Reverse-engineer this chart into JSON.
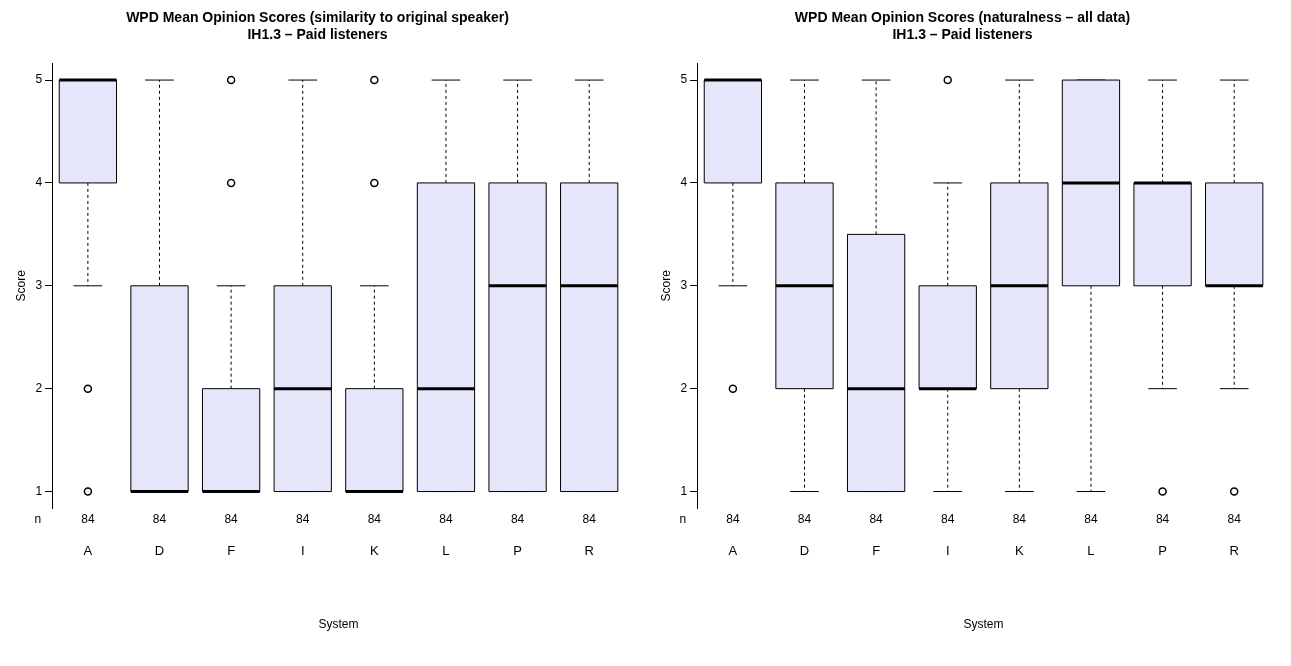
{
  "chart_data": [
    {
      "type": "box",
      "title": "WPD Mean Opinion Scores (similarity to original speaker)",
      "subtitle": "IH1.3 – Paid listeners",
      "xlabel": "System",
      "ylabel": "Score",
      "categories": [
        "A",
        "D",
        "F",
        "I",
        "K",
        "L",
        "P",
        "R"
      ],
      "ylim": [
        0.84,
        5.16
      ],
      "yticks": [
        1,
        2,
        3,
        4,
        5
      ],
      "grid": false,
      "legend": false,
      "series": [
        {
          "color": "#e6e6fa",
          "boxes": [
            {
              "low": 3,
              "q1": 4,
              "median": 5,
              "q3": 5,
              "high": 5,
              "outliers": [
                2,
                1
              ]
            },
            {
              "low": 1,
              "q1": 1,
              "median": 1,
              "q3": 3,
              "high": 5
            },
            {
              "low": 1,
              "q1": 1,
              "median": 1,
              "q3": 2,
              "high": 3,
              "outliers": [
                5,
                4
              ]
            },
            {
              "low": 1,
              "q1": 1,
              "median": 2,
              "q3": 3,
              "high": 5
            },
            {
              "low": 1,
              "q1": 1,
              "median": 1,
              "q3": 2,
              "high": 3,
              "outliers": [
                5,
                4
              ]
            },
            {
              "low": 1,
              "q1": 1,
              "median": 2,
              "q3": 4,
              "high": 5
            },
            {
              "low": 1,
              "q1": 1,
              "median": 3,
              "q3": 4,
              "high": 5
            },
            {
              "low": 1,
              "q1": 1,
              "median": 3,
              "q3": 4,
              "high": 5
            }
          ]
        }
      ],
      "annotations": [
        "n",
        "84",
        "84",
        "84",
        "84",
        "84",
        "84",
        "84",
        "84"
      ]
    },
    {
      "type": "box",
      "title": "WPD Mean Opinion Scores (naturalness – all data)",
      "subtitle": "IH1.3 – Paid listeners",
      "xlabel": "System",
      "ylabel": "Score",
      "categories": [
        "A",
        "D",
        "F",
        "I",
        "K",
        "L",
        "P",
        "R"
      ],
      "ylim": [
        0.84,
        5.16
      ],
      "yticks": [
        1,
        2,
        3,
        4,
        5
      ],
      "grid": false,
      "legend": false,
      "series": [
        {
          "color": "#e6e6fa",
          "boxes": [
            {
              "low": 3,
              "q1": 4,
              "median": 5,
              "q3": 5,
              "high": 5,
              "outliers": [
                2
              ]
            },
            {
              "low": 1,
              "q1": 2,
              "median": 3,
              "q3": 4,
              "high": 5
            },
            {
              "low": 1,
              "q1": 1,
              "median": 2,
              "q3": 3.5,
              "high": 5
            },
            {
              "low": 1,
              "q1": 2,
              "median": 2,
              "q3": 3,
              "high": 4,
              "outliers": [
                5
              ]
            },
            {
              "low": 1,
              "q1": 2,
              "median": 3,
              "q3": 4,
              "high": 5
            },
            {
              "low": 1,
              "q1": 3,
              "median": 4,
              "q3": 5,
              "high": 5
            },
            {
              "low": 2,
              "q1": 3,
              "median": 4,
              "q3": 4,
              "high": 5,
              "outliers": [
                1
              ]
            },
            {
              "low": 2,
              "q1": 3,
              "median": 3,
              "q3": 4,
              "high": 5,
              "outliers": [
                1
              ]
            }
          ]
        }
      ],
      "annotations": [
        "n",
        "84",
        "84",
        "84",
        "84",
        "84",
        "84",
        "84",
        "84"
      ]
    }
  ]
}
